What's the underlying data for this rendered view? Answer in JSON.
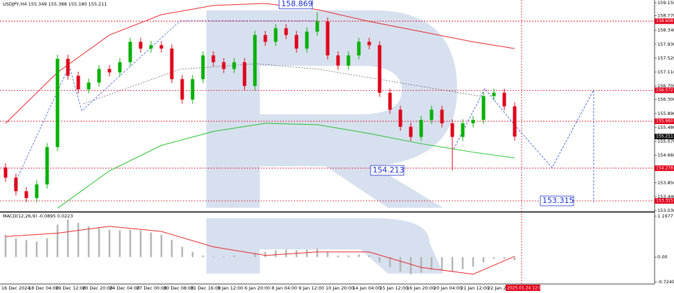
{
  "chart_data": {
    "type": "candlestick",
    "header": "USDJPY,H4  155.349 155.388 155.180 155.211",
    "up_color": "#00b000",
    "down_color": "#e0001a",
    "candles": {
      "open": [
        154.3,
        154.0,
        153.6,
        153.4,
        153.8,
        154.9,
        157.5,
        157.0,
        156.6,
        156.8,
        157.2,
        157.1,
        157.4,
        158.0,
        157.8,
        157.9,
        157.8,
        156.9,
        156.3,
        156.9,
        157.6,
        157.4,
        157.2,
        157.4,
        156.7,
        158.2,
        158.0,
        158.4,
        158.2,
        157.8,
        158.3,
        158.6,
        157.6,
        157.3,
        157.6,
        158.0,
        157.9,
        156.5,
        156.0,
        155.5,
        155.2,
        155.7,
        156.0,
        155.6,
        155.2,
        155.6,
        155.7,
        156.4,
        156.5,
        156.1
      ],
      "high": [
        154.42,
        154.12,
        153.72,
        153.92,
        155.02,
        157.62,
        157.62,
        157.12,
        156.92,
        157.32,
        157.32,
        157.52,
        158.12,
        158.12,
        158.02,
        158.02,
        157.92,
        157.02,
        157.02,
        157.72,
        157.72,
        157.52,
        157.52,
        157.52,
        158.32,
        158.32,
        158.52,
        158.52,
        158.32,
        158.42,
        158.869,
        158.72,
        157.72,
        157.72,
        158.12,
        158.12,
        158.02,
        156.62,
        156.12,
        155.62,
        155.82,
        156.12,
        156.12,
        155.72,
        155.72,
        155.82,
        156.52,
        156.62,
        156.62,
        156.22
      ],
      "low": [
        153.88,
        153.48,
        153.28,
        153.28,
        153.68,
        154.78,
        156.88,
        156.48,
        156.48,
        156.68,
        156.98,
        156.98,
        157.28,
        157.68,
        157.68,
        157.68,
        156.78,
        156.18,
        156.18,
        156.78,
        157.28,
        157.08,
        157.08,
        156.58,
        156.58,
        157.88,
        157.88,
        158.08,
        157.68,
        157.68,
        158.18,
        157.48,
        157.18,
        157.18,
        157.48,
        157.78,
        156.38,
        155.88,
        155.38,
        155.08,
        155.08,
        155.58,
        155.48,
        154.213,
        155.08,
        155.48,
        155.58,
        156.28,
        155.98,
        155.09
      ],
      "close": [
        154.0,
        153.6,
        153.4,
        153.8,
        154.9,
        157.5,
        157.0,
        156.6,
        156.8,
        157.2,
        157.1,
        157.4,
        158.0,
        157.8,
        157.9,
        157.8,
        156.9,
        156.3,
        156.9,
        157.6,
        157.4,
        157.2,
        157.4,
        156.7,
        158.2,
        158.0,
        158.4,
        158.2,
        157.8,
        158.3,
        158.6,
        157.6,
        157.3,
        157.6,
        158.0,
        157.9,
        156.5,
        156.0,
        155.5,
        155.2,
        155.7,
        156.0,
        155.6,
        155.2,
        155.6,
        155.7,
        156.4,
        156.5,
        156.1,
        155.211
      ]
    },
    "series": [
      {
        "color": "#e8262a",
        "x": [
          0,
          5,
          10,
          15,
          20,
          25,
          30,
          35,
          40,
          45,
          49
        ],
        "values": [
          155.6,
          157.1,
          158.2,
          158.8,
          159.07,
          159.13,
          158.95,
          158.6,
          158.3,
          158.0,
          157.8
        ]
      },
      {
        "color": "#22c02a",
        "x": [
          5,
          10,
          15,
          20,
          25,
          30,
          35,
          40,
          45,
          49
        ],
        "values": [
          153.1,
          154.2,
          154.95,
          155.36,
          155.6,
          155.56,
          155.3,
          155.0,
          154.75,
          154.58
        ]
      }
    ],
    "ylim": [
      153.03,
      159.15
    ],
    "yticks": [
      {
        "value": 159.15,
        "label": "159.150"
      },
      {
        "value": 158.77,
        "label": "158.770"
      },
      {
        "value": 158.34,
        "label": "158.340"
      },
      {
        "value": 157.93,
        "label": "157.930"
      },
      {
        "value": 157.52,
        "label": "157.520"
      },
      {
        "value": 157.11,
        "label": "157.110"
      },
      {
        "value": 156.7,
        "label": "156.700"
      },
      {
        "value": 156.3,
        "label": "156.300"
      },
      {
        "value": 155.89,
        "label": "155.890"
      },
      {
        "value": 155.48,
        "label": "155.480"
      },
      {
        "value": 155.07,
        "label": "155.070"
      },
      {
        "value": 154.66,
        "label": "154.660"
      },
      {
        "value": 154.25,
        "label": "154.250"
      },
      {
        "value": 153.85,
        "label": "153.850"
      },
      {
        "value": 153.44,
        "label": "153.440"
      },
      {
        "value": 153.03,
        "label": "153.030"
      }
    ],
    "price_levels": [
      {
        "value": 158.608,
        "label": "158.608"
      },
      {
        "value": 156.572,
        "label": "156.572"
      },
      {
        "value": 155.66,
        "label": "155.660"
      },
      {
        "value": 154.278,
        "label": "154.278"
      },
      {
        "value": 153.315,
        "label": "153.315"
      }
    ],
    "current_price": {
      "value": 155.211,
      "label": "155.211"
    },
    "annotations": [
      {
        "value": 158.869,
        "label": "158.869"
      },
      {
        "value": 154.213,
        "label": "154.213"
      },
      {
        "value": 153.315,
        "label": "153.315"
      }
    ],
    "x_labels": [
      "16 Dec 2024",
      "18 Dec 04:00",
      "19 Dec 12:00",
      "20 Dec 20:00",
      "24 Dec 04:00",
      "27 Dec 00:00",
      "30 Dec 08:00",
      "31 Dec 16:00",
      "3 Jan 12:00",
      "6 Jan 20:00",
      "8 Jan 04:00",
      "9 Jan 12:00",
      "10 Jan 20:00",
      "14 Jan 04:00",
      "15 Jan 12:00",
      "16 Jan 20:00",
      "20 Jan 04:00",
      "21 Jan 12:00",
      "22 Jan 20:00"
    ],
    "cursor_time": "2025.01.24 12:00",
    "macd": {
      "label": "MACD(12,26,9) -0.0895 0.0223",
      "hist_color": "#b4b4b4",
      "signal_color": "#e8262a",
      "histogram": [
        0.65,
        0.55,
        0.5,
        0.45,
        0.55,
        0.95,
        1.1,
        1.0,
        0.9,
        0.85,
        0.8,
        0.78,
        0.8,
        0.78,
        0.72,
        0.65,
        0.5,
        0.3,
        0.15,
        0.05,
        0.02,
        0.02,
        0.05,
        0.0,
        0.12,
        0.15,
        0.2,
        0.22,
        0.2,
        0.22,
        0.25,
        0.15,
        0.05,
        0.05,
        0.08,
        0.05,
        -0.15,
        -0.3,
        -0.42,
        -0.5,
        -0.45,
        -0.38,
        -0.38,
        -0.42,
        -0.35,
        -0.28,
        -0.15,
        -0.05,
        -0.05,
        -0.0895
      ],
      "signal": {
        "x": [
          0,
          5,
          10,
          15,
          20,
          25,
          30,
          35,
          40,
          45,
          49
        ],
        "values": [
          0.6,
          0.7,
          0.9,
          0.75,
          0.3,
          0.05,
          0.15,
          0.15,
          -0.3,
          -0.5,
          0.0223
        ]
      },
      "ylim": [
        -0.7249,
        1.1977
      ],
      "yticks": [
        {
          "value": 1.1977,
          "label": "1.1977"
        },
        {
          "value": 0,
          "label": "0.00"
        },
        {
          "value": -0.7249,
          "label": "-0.7249"
        }
      ]
    }
  }
}
